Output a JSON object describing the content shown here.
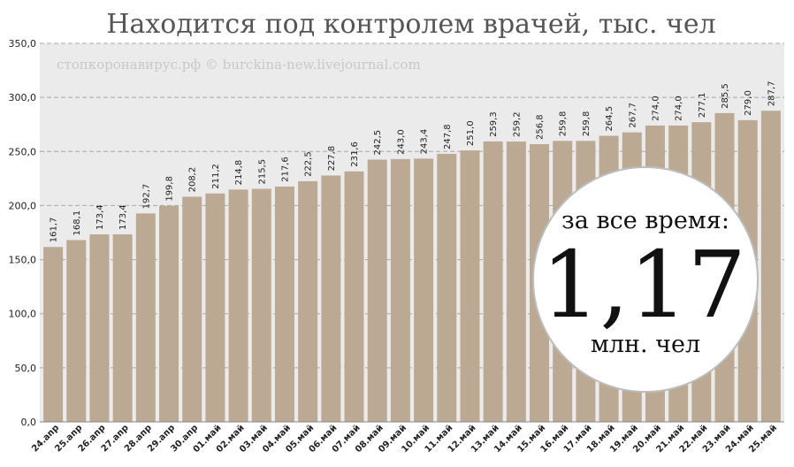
{
  "watermark": "стопкоронавирус.рф © burckina-new.livejournal.com",
  "badge": {
    "top": "за все время:",
    "value": "1,17",
    "bottom": "млн. чел"
  },
  "colors": {
    "bar": "#bca994",
    "plot_bg": "#ebebeb",
    "grid": "#a8a8a8"
  },
  "chart_data": {
    "type": "bar",
    "title": "Находится под контролем врачей, тыс. чел",
    "xlabel": "",
    "ylabel": "",
    "ylim": [
      0,
      350
    ],
    "yticks": [
      "0,0",
      "50,0",
      "100,0",
      "150,0",
      "200,0",
      "250,0",
      "300,0",
      "350,0"
    ],
    "grid": true,
    "categories": [
      "24.апр",
      "25.апр",
      "26.апр",
      "27.апр",
      "28.апр",
      "29.апр",
      "30.апр",
      "01.май",
      "02.май",
      "03.май",
      "04.май",
      "05.май",
      "06.май",
      "07.май",
      "08.май",
      "09.май",
      "10.май",
      "11.май",
      "12.май",
      "13.май",
      "14.май",
      "15.май",
      "16.май",
      "17.май",
      "18.май",
      "19.май",
      "20.май",
      "21.май",
      "22.май",
      "23.май",
      "24.май",
      "25.май"
    ],
    "values": [
      161.7,
      168.1,
      173.4,
      173.4,
      192.7,
      199.8,
      208.2,
      211.2,
      214.8,
      215.5,
      217.6,
      222.5,
      227.8,
      231.6,
      242.5,
      243.0,
      243.4,
      247.8,
      251.0,
      259.3,
      259.2,
      256.8,
      259.8,
      259.8,
      264.5,
      267.7,
      274.0,
      274.0,
      277.1,
      285.5,
      279.0,
      287.7
    ],
    "labels": [
      "161,7",
      "168,1",
      "173,4",
      "173,4",
      "192,7",
      "199,8",
      "208,2",
      "211,2",
      "214,8",
      "215,5",
      "217,6",
      "222,5",
      "227,8",
      "231,6",
      "242,5",
      "243,0",
      "243,4",
      "247,8",
      "251,0",
      "259,3",
      "259,2",
      "256,8",
      "259,8",
      "259,8",
      "264,5",
      "267,7",
      "274,0",
      "274,0",
      "277,1",
      "285,5",
      "279,0",
      "287,7"
    ]
  }
}
